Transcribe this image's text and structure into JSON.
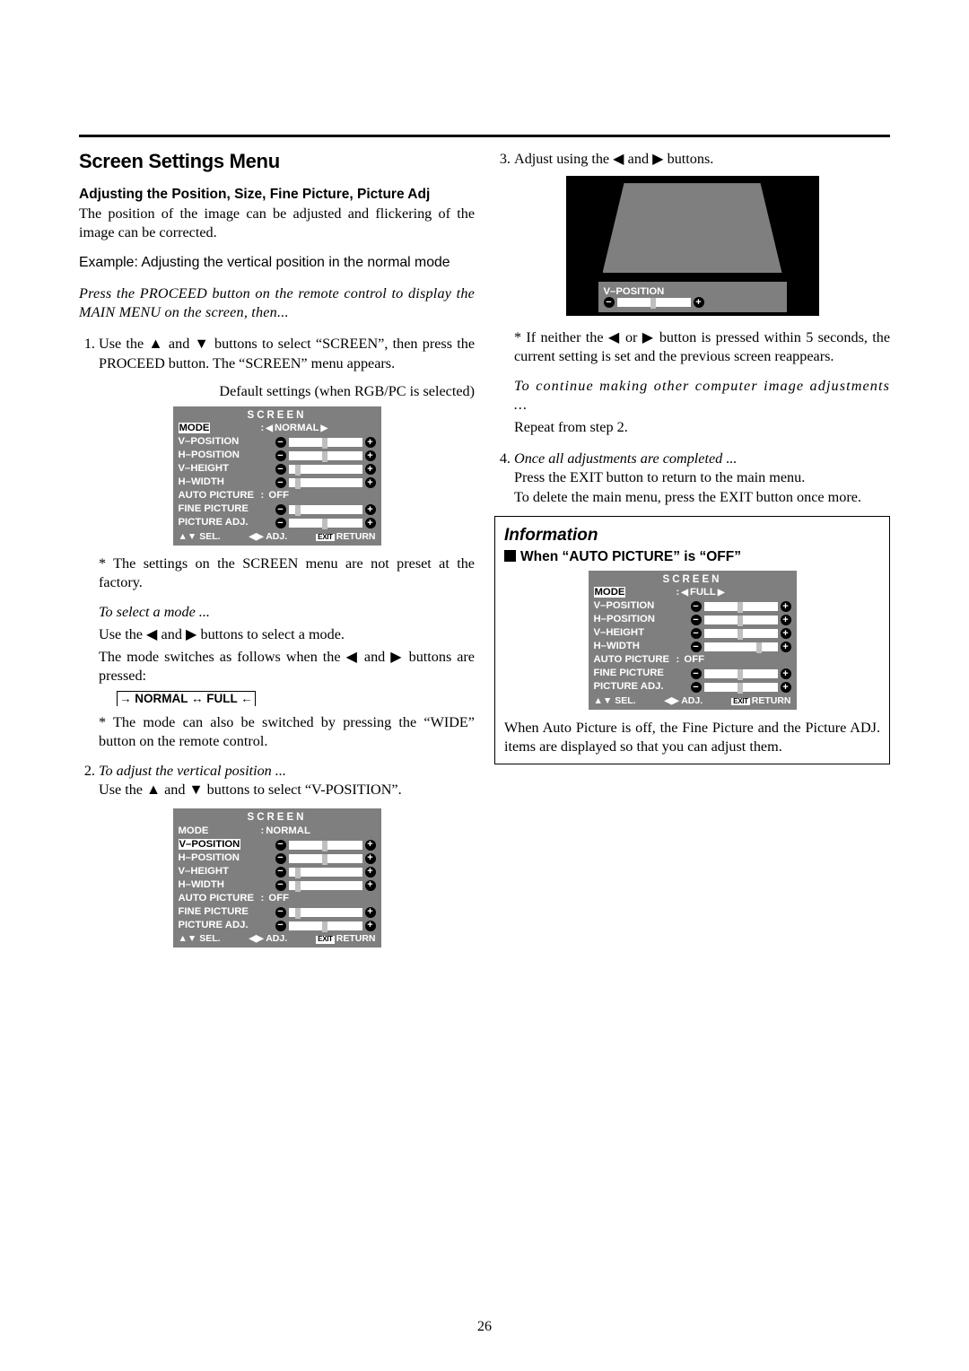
{
  "page_number": "26",
  "hr": true,
  "left": {
    "title": "Screen Settings Menu",
    "subheading": "Adjusting the Position, Size, Fine Picture, Picture Adj",
    "intro": "The position of the image can be adjusted and flickering of the image can be corrected.",
    "example": "Example: Adjusting the vertical position in the normal mode",
    "proceed_note": "Press the PROCEED button on the remote control to display the MAIN MENU on the screen, then...",
    "step1_a": "Use the ",
    "step1_b": " and ",
    "step1_c": " buttons to select “SCREEN”, then press the PROCEED button. The “SCREEN” menu appears.",
    "default_caption": "Default settings (when RGB/PC is selected)",
    "factory_note": "* The settings on the SCREEN menu are not preset at the factory.",
    "select_mode_head": "To select a mode ...",
    "select_mode_1a": "Use the ",
    "select_mode_1b": " and ",
    "select_mode_1c": " buttons to select a mode.",
    "select_mode_2a": "The mode switches as follows when the ",
    "select_mode_2b": " and ",
    "select_mode_2c": " buttons are pressed:",
    "mode_sequence": "→ NORMAL ↔ FULL ←",
    "wide_note": "* The mode can also be switched by pressing the “WIDE” button on the remote control.",
    "step2_head": "To adjust the vertical position ...",
    "step2_a": "Use the ",
    "step2_b": " and ",
    "step2_c": " buttons to select “V-POSITION”."
  },
  "right": {
    "step3_a": "Adjust using the ",
    "step3_b": " and ",
    "step3_c": " buttons.",
    "timeout_a": "* If neither the ",
    "timeout_b": " or ",
    "timeout_c": " button is pressed within 5 seconds, the current setting is set and the previous screen reappears.",
    "continue_head": "To continue making other computer image adjustments ...",
    "continue_body": "Repeat from step 2.",
    "step4_head": "Once all adjustments are completed ...",
    "step4_body": "Press the EXIT button to return to the main menu.\nTo delete the main menu, press the EXIT button once more."
  },
  "info": {
    "title": "Information",
    "sub": "When “AUTO PICTURE” is “OFF”",
    "footer": "When Auto Picture is off, the Fine Picture and the Picture ADJ. items are displayed so that you can adjust them."
  },
  "glyphs": {
    "up": "▲",
    "down": "▼",
    "left": "◀",
    "right": "▶",
    "arrow_r": "→",
    "arrow_l": "←",
    "dblarr": "↔",
    "updown": "▲▼",
    "leftright": "◀▶"
  },
  "osd_common": {
    "title": "SCREEN",
    "footer_sel": "SEL.",
    "footer_adj": "ADJ.",
    "footer_return": "RETURN",
    "footer_exit": "EXIT"
  },
  "osd1": {
    "mode_label": "MODE",
    "mode_value": "NORMAL",
    "mode_selected": true,
    "mode_arrows": true,
    "rows": [
      {
        "label": "V–POSITION",
        "knob": 0.48
      },
      {
        "label": "H–POSITION",
        "knob": 0.48
      },
      {
        "label": "V–HEIGHT",
        "knob": 0.08
      },
      {
        "label": "H–WIDTH",
        "knob": 0.08
      }
    ],
    "auto_label": "AUTO PICTURE",
    "auto_value": "OFF",
    "rows2": [
      {
        "label": "FINE PICTURE",
        "knob": 0.08
      },
      {
        "label": "PICTURE ADJ.",
        "knob": 0.48
      }
    ]
  },
  "osd2": {
    "mode_label": "MODE",
    "mode_value": "NORMAL",
    "mode_selected": false,
    "mode_arrows": false,
    "rows": [
      {
        "label": "V–POSITION",
        "selected": true,
        "knob": 0.48
      },
      {
        "label": "H–POSITION",
        "knob": 0.48
      },
      {
        "label": "V–HEIGHT",
        "knob": 0.08
      },
      {
        "label": "H–WIDTH",
        "knob": 0.08
      }
    ],
    "auto_label": "AUTO PICTURE",
    "auto_value": "OFF",
    "rows2": [
      {
        "label": "FINE PICTURE",
        "knob": 0.08
      },
      {
        "label": "PICTURE ADJ.",
        "knob": 0.48
      }
    ]
  },
  "osd3": {
    "mode_label": "MODE",
    "mode_value": "FULL",
    "mode_selected": true,
    "mode_arrows": true,
    "rows": [
      {
        "label": "V–POSITION",
        "knob": 0.48
      },
      {
        "label": "H–POSITION",
        "knob": 0.48
      },
      {
        "label": "V–HEIGHT",
        "knob": 0.48
      },
      {
        "label": "H–WIDTH",
        "knob": 0.75
      }
    ],
    "auto_label": "AUTO PICTURE",
    "auto_value": "OFF",
    "rows2": [
      {
        "label": "FINE PICTURE",
        "knob": 0.48
      },
      {
        "label": "PICTURE ADJ.",
        "knob": 0.48
      }
    ]
  },
  "vpos_bar": {
    "label": "V–POSITION",
    "knob": 0.48
  }
}
